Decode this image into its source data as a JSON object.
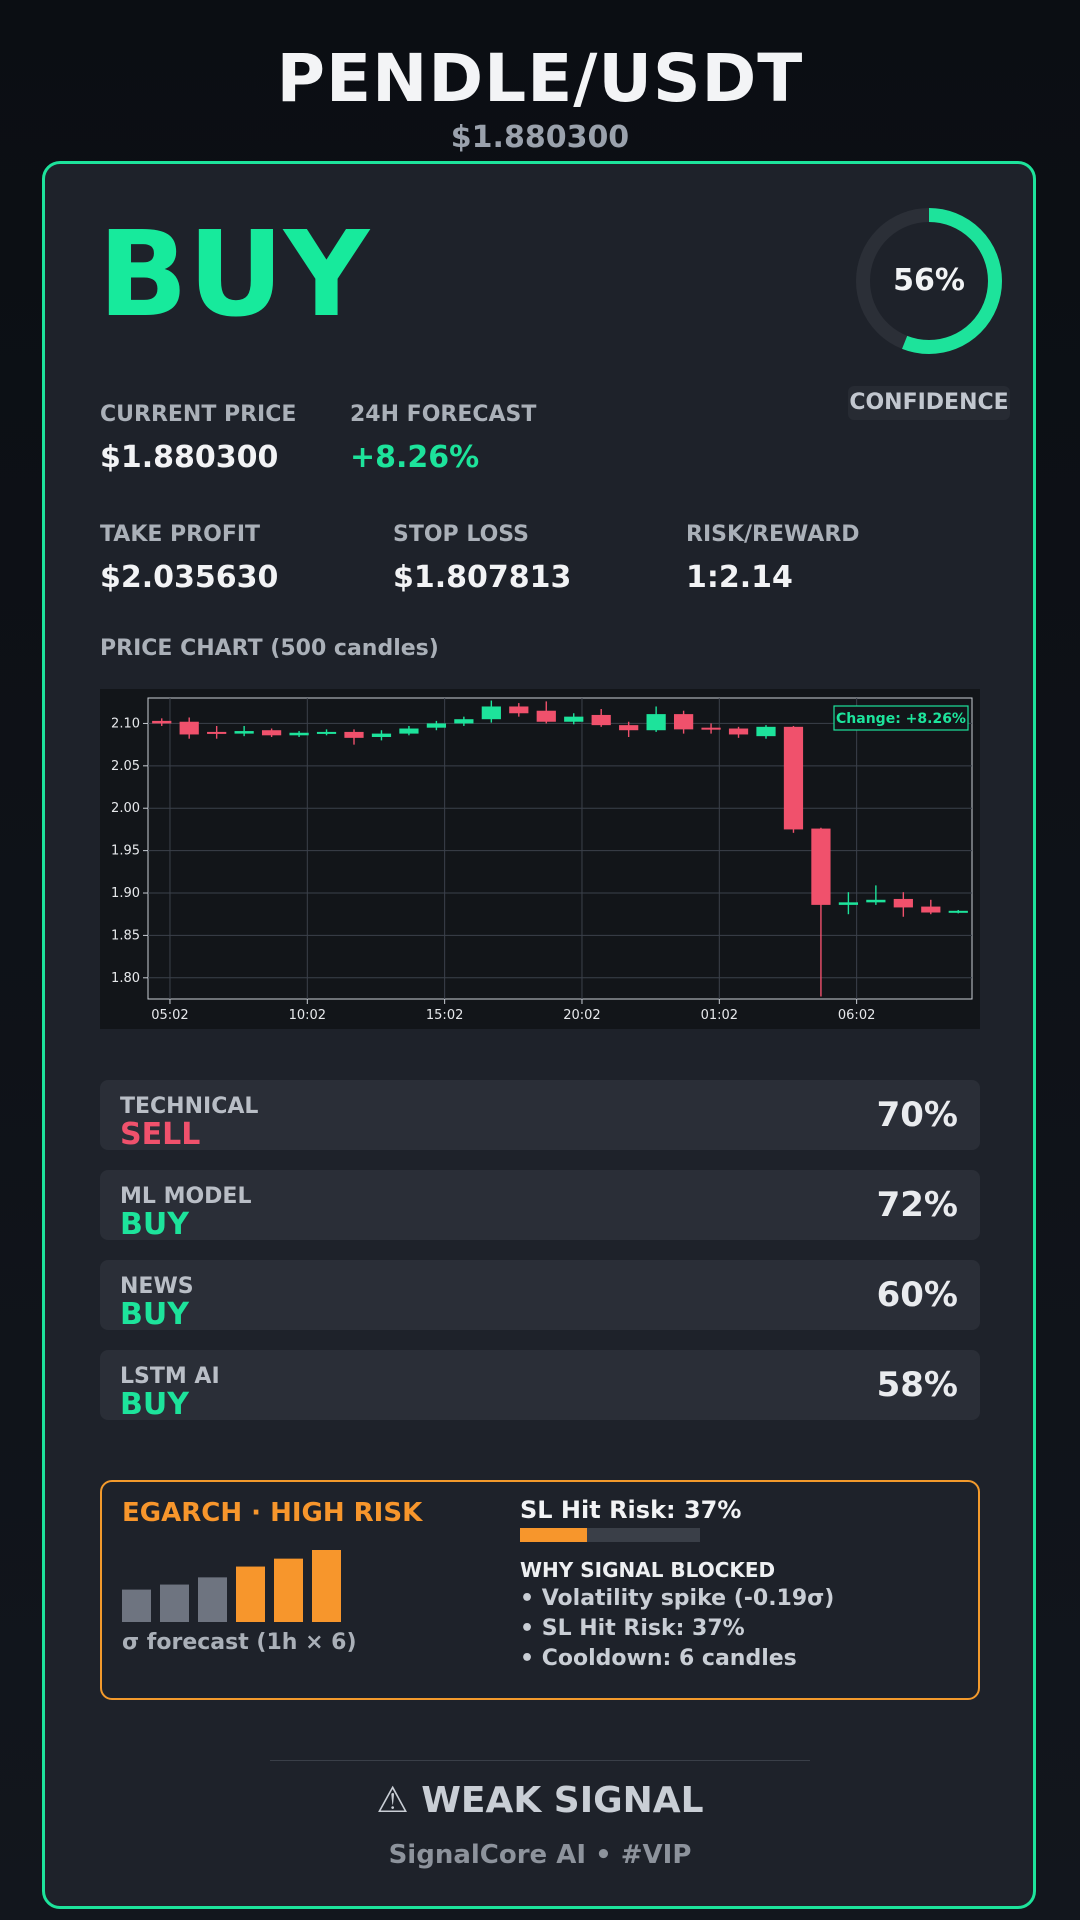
{
  "header": {
    "pair": "PENDLE/USDT",
    "price": "$1.880300"
  },
  "signal": {
    "label": "BUY",
    "confidence_text": "56%",
    "confidence": 0.56,
    "confidence_label": "CONFIDENCE"
  },
  "stats": {
    "current_price_label": "CURRENT PRICE",
    "current_price": "$1.880300",
    "forecast_label": "24H FORECAST",
    "forecast": "+8.26%",
    "take_profit_label": "TAKE PROFIT",
    "take_profit": "$2.035630",
    "stop_loss_label": "STOP LOSS",
    "stop_loss": "$1.807813",
    "risk_reward_label": "RISK/REWARD",
    "risk_reward": "1:2.14"
  },
  "chart_title": "PRICE CHART (500 candles)",
  "chart_data": {
    "type": "candlestick",
    "annotation": "Change: +8.26%",
    "ylim": [
      1.775,
      2.13
    ],
    "yticks": [
      2.1,
      2.05,
      2.0,
      1.95,
      1.9,
      1.85,
      1.8
    ],
    "xticks": [
      "05:02",
      "10:02",
      "15:02",
      "20:02",
      "01:02",
      "06:02"
    ],
    "xtick_index": [
      0.3,
      5.3,
      10.3,
      15.3,
      20.3,
      25.3
    ],
    "grid": true,
    "candles": [
      {
        "o": 2.103,
        "c": 2.1,
        "h": 2.106,
        "l": 2.097
      },
      {
        "o": 2.102,
        "c": 2.087,
        "h": 2.107,
        "l": 2.082
      },
      {
        "o": 2.09,
        "c": 2.088,
        "h": 2.097,
        "l": 2.082
      },
      {
        "o": 2.088,
        "c": 2.091,
        "h": 2.097,
        "l": 2.085
      },
      {
        "o": 2.092,
        "c": 2.086,
        "h": 2.094,
        "l": 2.084
      },
      {
        "o": 2.086,
        "c": 2.089,
        "h": 2.091,
        "l": 2.084
      },
      {
        "o": 2.088,
        "c": 2.09,
        "h": 2.093,
        "l": 2.086
      },
      {
        "o": 2.09,
        "c": 2.083,
        "h": 2.093,
        "l": 2.075
      },
      {
        "o": 2.084,
        "c": 2.088,
        "h": 2.092,
        "l": 2.08
      },
      {
        "o": 2.088,
        "c": 2.094,
        "h": 2.097,
        "l": 2.086
      },
      {
        "o": 2.095,
        "c": 2.1,
        "h": 2.103,
        "l": 2.092
      },
      {
        "o": 2.1,
        "c": 2.105,
        "h": 2.108,
        "l": 2.097
      },
      {
        "o": 2.105,
        "c": 2.12,
        "h": 2.127,
        "l": 2.101
      },
      {
        "o": 2.12,
        "c": 2.112,
        "h": 2.124,
        "l": 2.108
      },
      {
        "o": 2.115,
        "c": 2.102,
        "h": 2.126,
        "l": 2.1
      },
      {
        "o": 2.102,
        "c": 2.108,
        "h": 2.112,
        "l": 2.099
      },
      {
        "o": 2.11,
        "c": 2.098,
        "h": 2.117,
        "l": 2.096
      },
      {
        "o": 2.098,
        "c": 2.092,
        "h": 2.102,
        "l": 2.084
      },
      {
        "o": 2.092,
        "c": 2.111,
        "h": 2.12,
        "l": 2.09
      },
      {
        "o": 2.111,
        "c": 2.093,
        "h": 2.115,
        "l": 2.088
      },
      {
        "o": 2.095,
        "c": 2.093,
        "h": 2.1,
        "l": 2.088
      },
      {
        "o": 2.094,
        "c": 2.087,
        "h": 2.096,
        "l": 2.083
      },
      {
        "o": 2.085,
        "c": 2.096,
        "h": 2.098,
        "l": 2.082
      },
      {
        "o": 2.096,
        "c": 1.975,
        "h": 2.097,
        "l": 1.971
      },
      {
        "o": 1.976,
        "c": 1.886,
        "h": 1.977,
        "l": 1.778
      },
      {
        "o": 1.886,
        "c": 1.889,
        "h": 1.901,
        "l": 1.875
      },
      {
        "o": 1.889,
        "c": 1.892,
        "h": 1.909,
        "l": 1.886
      },
      {
        "o": 1.893,
        "c": 1.883,
        "h": 1.901,
        "l": 1.872
      },
      {
        "o": 1.884,
        "c": 1.877,
        "h": 1.892,
        "l": 1.875
      },
      {
        "o": 1.877,
        "c": 1.879,
        "h": 1.88,
        "l": 1.876
      }
    ]
  },
  "models": [
    {
      "name": "TECHNICAL",
      "signal": "SELL",
      "confidence": "70%"
    },
    {
      "name": "ML MODEL",
      "signal": "BUY",
      "confidence": "72%"
    },
    {
      "name": "NEWS",
      "signal": "BUY",
      "confidence": "60%"
    },
    {
      "name": "LSTM AI",
      "signal": "BUY",
      "confidence": "58%"
    }
  ],
  "risk": {
    "title": "EGARCH · HIGH RISK",
    "sigma_bars": [
      0.45,
      0.52,
      0.62,
      0.77,
      0.88,
      1.0
    ],
    "sigma_bar_status": [
      "normal",
      "normal",
      "normal",
      "high",
      "high",
      "high"
    ],
    "sigma_caption": "σ forecast (1h × 6)",
    "sl_risk_label": "SL Hit Risk: 37%",
    "sl_risk": 0.37,
    "why_title": "WHY SIGNAL BLOCKED",
    "reasons": [
      "• Volatility spike (-0.19σ)",
      "• SL Hit Risk: 37%",
      "• Cooldown: 6 candles"
    ]
  },
  "footer": {
    "strength": "⚠ WEAK SIGNAL",
    "brand": "SignalCore AI • #VIP"
  },
  "colors": {
    "accent": "#1de39b",
    "sell": "#f0516c",
    "warning": "#f7962c"
  }
}
